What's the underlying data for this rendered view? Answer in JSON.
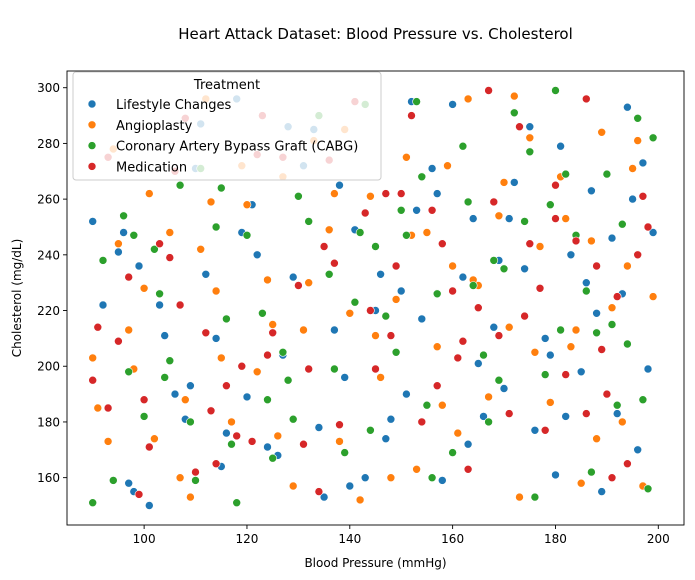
{
  "chart_data": {
    "type": "scatter",
    "title": "Heart Attack Dataset: Blood Pressure vs. Cholesterol",
    "xlabel": "Blood Pressure (mmHg)",
    "ylabel": "Cholesterol (mg/dL)",
    "xlim": [
      85,
      205
    ],
    "ylim": [
      143,
      306
    ],
    "xticks": [
      100,
      120,
      140,
      160,
      180,
      200
    ],
    "yticks": [
      160,
      180,
      200,
      220,
      240,
      260,
      280,
      300
    ],
    "grid": false,
    "legend": {
      "title": "Treatment",
      "placement": "top-left"
    },
    "series": [
      {
        "name": "Lifestyle Changes",
        "color": "#1f77b4",
        "points": [
          [
            90,
            252
          ],
          [
            92,
            222
          ],
          [
            95,
            241
          ],
          [
            96,
            248
          ],
          [
            98,
            155
          ],
          [
            101,
            150
          ],
          [
            104,
            211
          ],
          [
            106,
            190
          ],
          [
            108,
            181
          ],
          [
            110,
            271
          ],
          [
            112,
            233
          ],
          [
            114,
            210
          ],
          [
            116,
            176
          ],
          [
            118,
            296
          ],
          [
            120,
            189
          ],
          [
            121,
            258
          ],
          [
            124,
            171
          ],
          [
            126,
            168
          ],
          [
            128,
            286
          ],
          [
            131,
            272
          ],
          [
            133,
            285
          ],
          [
            135,
            153
          ],
          [
            137,
            213
          ],
          [
            139,
            196
          ],
          [
            141,
            249
          ],
          [
            143,
            160
          ],
          [
            146,
            233
          ],
          [
            148,
            181
          ],
          [
            150,
            227
          ],
          [
            152,
            295
          ],
          [
            154,
            217
          ],
          [
            156,
            271
          ],
          [
            158,
            159
          ],
          [
            160,
            294
          ],
          [
            162,
            232
          ],
          [
            164,
            253
          ],
          [
            166,
            182
          ],
          [
            168,
            214
          ],
          [
            170,
            192
          ],
          [
            172,
            266
          ],
          [
            174,
            235
          ],
          [
            176,
            177
          ],
          [
            178,
            210
          ],
          [
            180,
            161
          ],
          [
            181,
            279
          ],
          [
            183,
            240
          ],
          [
            185,
            198
          ],
          [
            187,
            263
          ],
          [
            189,
            155
          ],
          [
            191,
            246
          ],
          [
            193,
            226
          ],
          [
            194,
            293
          ],
          [
            196,
            170
          ],
          [
            197,
            273
          ],
          [
            198,
            199
          ],
          [
            199,
            248
          ],
          [
            97,
            158
          ],
          [
            103,
            222
          ],
          [
            109,
            193
          ],
          [
            115,
            164
          ],
          [
            122,
            240
          ],
          [
            127,
            204
          ],
          [
            134,
            178
          ],
          [
            140,
            157
          ],
          [
            145,
            220
          ],
          [
            151,
            190
          ],
          [
            157,
            262
          ],
          [
            163,
            172
          ],
          [
            169,
            238
          ],
          [
            175,
            286
          ],
          [
            179,
            204
          ],
          [
            186,
            230
          ],
          [
            192,
            183
          ],
          [
            195,
            260
          ],
          [
            99,
            236
          ],
          [
            111,
            287
          ],
          [
            119,
            248
          ],
          [
            129,
            232
          ],
          [
            138,
            265
          ],
          [
            147,
            174
          ],
          [
            153,
            256
          ],
          [
            165,
            201
          ],
          [
            171,
            253
          ],
          [
            182,
            182
          ],
          [
            188,
            219
          ],
          [
            196,
            240
          ]
        ]
      },
      {
        "name": "Angioplasty",
        "color": "#ff7f0e",
        "points": [
          [
            90,
            203
          ],
          [
            91,
            185
          ],
          [
            93,
            173
          ],
          [
            95,
            244
          ],
          [
            97,
            213
          ],
          [
            100,
            228
          ],
          [
            102,
            174
          ],
          [
            105,
            248
          ],
          [
            107,
            160
          ],
          [
            109,
            153
          ],
          [
            111,
            242
          ],
          [
            113,
            259
          ],
          [
            115,
            203
          ],
          [
            117,
            180
          ],
          [
            119,
            272
          ],
          [
            122,
            198
          ],
          [
            124,
            231
          ],
          [
            127,
            268
          ],
          [
            129,
            157
          ],
          [
            131,
            213
          ],
          [
            133,
            281
          ],
          [
            136,
            249
          ],
          [
            138,
            173
          ],
          [
            140,
            219
          ],
          [
            142,
            152
          ],
          [
            144,
            261
          ],
          [
            146,
            196
          ],
          [
            149,
            224
          ],
          [
            151,
            275
          ],
          [
            153,
            163
          ],
          [
            155,
            248
          ],
          [
            157,
            207
          ],
          [
            159,
            272
          ],
          [
            161,
            176
          ],
          [
            163,
            296
          ],
          [
            165,
            229
          ],
          [
            167,
            189
          ],
          [
            169,
            254
          ],
          [
            171,
            214
          ],
          [
            173,
            153
          ],
          [
            175,
            282
          ],
          [
            177,
            243
          ],
          [
            179,
            187
          ],
          [
            181,
            268
          ],
          [
            183,
            207
          ],
          [
            185,
            158
          ],
          [
            187,
            245
          ],
          [
            189,
            284
          ],
          [
            191,
            221
          ],
          [
            193,
            180
          ],
          [
            195,
            271
          ],
          [
            197,
            157
          ],
          [
            199,
            225
          ],
          [
            94,
            278
          ],
          [
            101,
            262
          ],
          [
            108,
            188
          ],
          [
            114,
            227
          ],
          [
            120,
            258
          ],
          [
            126,
            175
          ],
          [
            132,
            230
          ],
          [
            139,
            285
          ],
          [
            145,
            211
          ],
          [
            152,
            247
          ],
          [
            158,
            186
          ],
          [
            164,
            231
          ],
          [
            170,
            266
          ],
          [
            176,
            205
          ],
          [
            182,
            253
          ],
          [
            188,
            174
          ],
          [
            194,
            236
          ],
          [
            98,
            199
          ],
          [
            112,
            296
          ],
          [
            125,
            215
          ],
          [
            137,
            262
          ],
          [
            148,
            160
          ],
          [
            160,
            236
          ],
          [
            172,
            297
          ],
          [
            184,
            213
          ],
          [
            196,
            281
          ]
        ]
      },
      {
        "name": "Coronary Artery Bypass Graft (CABG)",
        "color": "#2ca02c",
        "points": [
          [
            90,
            151
          ],
          [
            92,
            238
          ],
          [
            94,
            159
          ],
          [
            96,
            254
          ],
          [
            98,
            247
          ],
          [
            100,
            182
          ],
          [
            103,
            226
          ],
          [
            105,
            202
          ],
          [
            107,
            265
          ],
          [
            109,
            180
          ],
          [
            111,
            271
          ],
          [
            114,
            250
          ],
          [
            116,
            217
          ],
          [
            118,
            151
          ],
          [
            120,
            247
          ],
          [
            123,
            219
          ],
          [
            125,
            167
          ],
          [
            127,
            205
          ],
          [
            129,
            181
          ],
          [
            132,
            252
          ],
          [
            134,
            290
          ],
          [
            136,
            233
          ],
          [
            139,
            169
          ],
          [
            141,
            223
          ],
          [
            143,
            294
          ],
          [
            145,
            243
          ],
          [
            147,
            218
          ],
          [
            149,
            205
          ],
          [
            151,
            247
          ],
          [
            153,
            295
          ],
          [
            155,
            186
          ],
          [
            157,
            226
          ],
          [
            160,
            169
          ],
          [
            162,
            279
          ],
          [
            164,
            229
          ],
          [
            166,
            204
          ],
          [
            168,
            238
          ],
          [
            170,
            235
          ],
          [
            172,
            291
          ],
          [
            174,
            252
          ],
          [
            176,
            153
          ],
          [
            178,
            197
          ],
          [
            180,
            299
          ],
          [
            182,
            269
          ],
          [
            184,
            247
          ],
          [
            186,
            227
          ],
          [
            188,
            212
          ],
          [
            190,
            269
          ],
          [
            192,
            186
          ],
          [
            194,
            208
          ],
          [
            196,
            289
          ],
          [
            198,
            156
          ],
          [
            199,
            282
          ],
          [
            97,
            198
          ],
          [
            104,
            196
          ],
          [
            110,
            159
          ],
          [
            117,
            172
          ],
          [
            124,
            188
          ],
          [
            130,
            261
          ],
          [
            137,
            199
          ],
          [
            144,
            177
          ],
          [
            150,
            256
          ],
          [
            156,
            160
          ],
          [
            163,
            259
          ],
          [
            169,
            195
          ],
          [
            175,
            277
          ],
          [
            181,
            213
          ],
          [
            187,
            162
          ],
          [
            193,
            251
          ],
          [
            197,
            188
          ],
          [
            102,
            242
          ],
          [
            115,
            264
          ],
          [
            128,
            195
          ],
          [
            142,
            248
          ],
          [
            154,
            268
          ],
          [
            167,
            180
          ],
          [
            179,
            258
          ],
          [
            191,
            215
          ]
        ]
      },
      {
        "name": "Medication",
        "color": "#d62728",
        "points": [
          [
            90,
            195
          ],
          [
            91,
            214
          ],
          [
            93,
            185
          ],
          [
            95,
            209
          ],
          [
            97,
            232
          ],
          [
            99,
            154
          ],
          [
            101,
            171
          ],
          [
            103,
            244
          ],
          [
            106,
            270
          ],
          [
            108,
            289
          ],
          [
            110,
            162
          ],
          [
            112,
            212
          ],
          [
            114,
            165
          ],
          [
            116,
            193
          ],
          [
            119,
            200
          ],
          [
            121,
            173
          ],
          [
            123,
            290
          ],
          [
            125,
            212
          ],
          [
            127,
            275
          ],
          [
            130,
            229
          ],
          [
            132,
            199
          ],
          [
            134,
            155
          ],
          [
            136,
            274
          ],
          [
            138,
            179
          ],
          [
            141,
            295
          ],
          [
            143,
            255
          ],
          [
            145,
            199
          ],
          [
            147,
            262
          ],
          [
            149,
            236
          ],
          [
            152,
            290
          ],
          [
            154,
            180
          ],
          [
            156,
            256
          ],
          [
            158,
            244
          ],
          [
            160,
            227
          ],
          [
            163,
            163
          ],
          [
            165,
            221
          ],
          [
            167,
            299
          ],
          [
            169,
            211
          ],
          [
            171,
            183
          ],
          [
            173,
            286
          ],
          [
            175,
            244
          ],
          [
            178,
            177
          ],
          [
            180,
            265
          ],
          [
            182,
            197
          ],
          [
            184,
            245
          ],
          [
            186,
            296
          ],
          [
            188,
            236
          ],
          [
            190,
            190
          ],
          [
            192,
            225
          ],
          [
            194,
            165
          ],
          [
            196,
            240
          ],
          [
            198,
            250
          ],
          [
            93,
            275
          ],
          [
            100,
            188
          ],
          [
            107,
            222
          ],
          [
            113,
            184
          ],
          [
            118,
            175
          ],
          [
            124,
            204
          ],
          [
            131,
            172
          ],
          [
            137,
            237
          ],
          [
            144,
            220
          ],
          [
            150,
            262
          ],
          [
            157,
            193
          ],
          [
            162,
            209
          ],
          [
            168,
            259
          ],
          [
            174,
            218
          ],
          [
            180,
            253
          ],
          [
            186,
            183
          ],
          [
            191,
            160
          ],
          [
            197,
            261
          ],
          [
            105,
            239
          ],
          [
            122,
            276
          ],
          [
            135,
            243
          ],
          [
            148,
            211
          ],
          [
            161,
            203
          ],
          [
            177,
            228
          ],
          [
            189,
            206
          ]
        ]
      }
    ]
  }
}
